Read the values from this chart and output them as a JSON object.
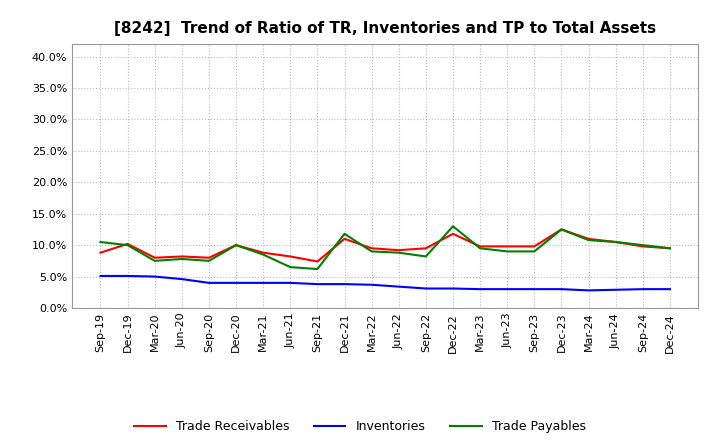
{
  "title": "[8242]  Trend of Ratio of TR, Inventories and TP to Total Assets",
  "x_labels": [
    "Sep-19",
    "Dec-19",
    "Mar-20",
    "Jun-20",
    "Sep-20",
    "Dec-20",
    "Mar-21",
    "Jun-21",
    "Sep-21",
    "Dec-21",
    "Mar-22",
    "Jun-22",
    "Sep-22",
    "Dec-22",
    "Mar-23",
    "Jun-23",
    "Sep-23",
    "Dec-23",
    "Mar-24",
    "Jun-24",
    "Sep-24",
    "Dec-24"
  ],
  "trade_receivables": [
    0.088,
    0.102,
    0.08,
    0.082,
    0.08,
    0.1,
    0.088,
    0.082,
    0.074,
    0.11,
    0.095,
    0.092,
    0.095,
    0.118,
    0.098,
    0.098,
    0.098,
    0.125,
    0.11,
    0.105,
    0.098,
    0.095
  ],
  "inventories": [
    0.051,
    0.051,
    0.05,
    0.046,
    0.04,
    0.04,
    0.04,
    0.04,
    0.038,
    0.038,
    0.037,
    0.034,
    0.031,
    0.031,
    0.03,
    0.03,
    0.03,
    0.03,
    0.028,
    0.029,
    0.03,
    0.03
  ],
  "trade_payables": [
    0.105,
    0.1,
    0.075,
    0.078,
    0.075,
    0.1,
    0.085,
    0.065,
    0.062,
    0.118,
    0.09,
    0.088,
    0.082,
    0.13,
    0.095,
    0.09,
    0.09,
    0.125,
    0.108,
    0.105,
    0.1,
    0.095
  ],
  "tr_color": "#ff0000",
  "inv_color": "#0000ff",
  "tp_color": "#008000",
  "ylim": [
    0.0,
    0.42
  ],
  "yticks": [
    0.0,
    0.05,
    0.1,
    0.15,
    0.2,
    0.25,
    0.3,
    0.35,
    0.4
  ],
  "background_color": "#ffffff",
  "grid_color": "#bbbbbb",
  "title_fontsize": 11,
  "tick_fontsize": 8,
  "legend_fontsize": 9
}
